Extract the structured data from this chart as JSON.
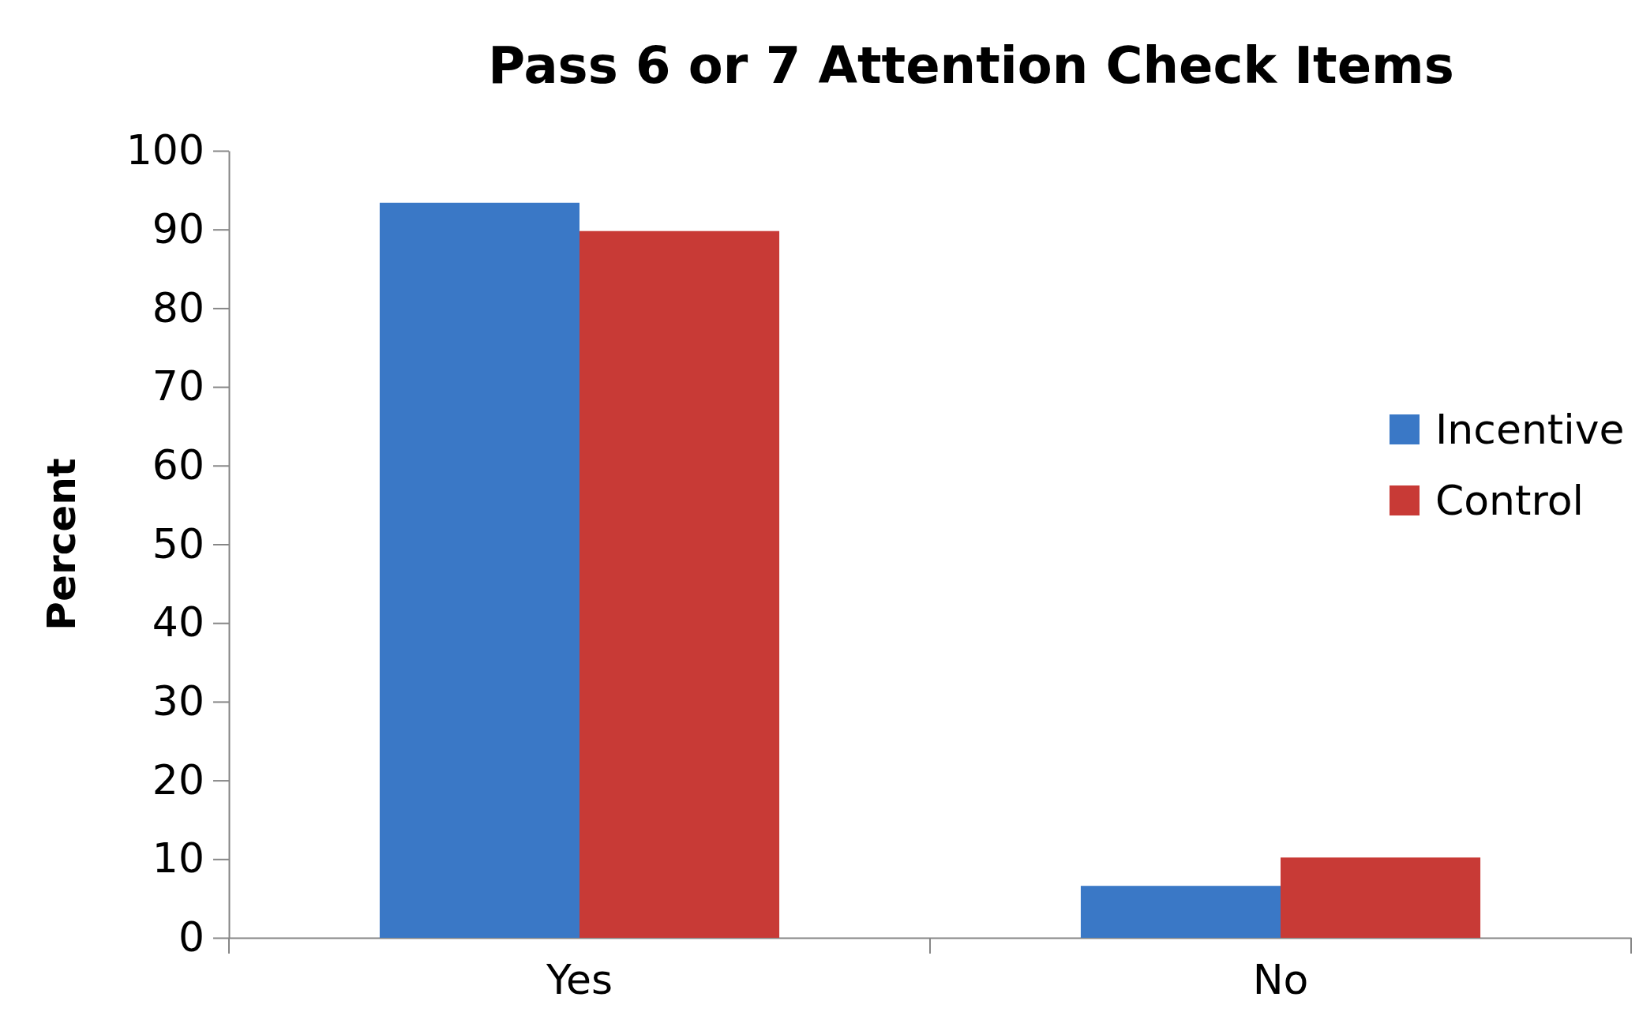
{
  "chart_data": {
    "type": "bar",
    "title": "Pass 6 or 7 Attention Check Items",
    "ylabel": "Percent",
    "categories": [
      "Yes",
      "No"
    ],
    "series": [
      {
        "name": "Incentive",
        "color": "#3a78c6",
        "values": [
          93.4,
          6.6
        ]
      },
      {
        "name": "Control",
        "color": "#c83a36",
        "values": [
          89.8,
          10.2
        ]
      }
    ],
    "ylim": [
      0,
      100
    ],
    "yticks": [
      0,
      10,
      20,
      30,
      40,
      50,
      60,
      70,
      80,
      90,
      100
    ],
    "legend": "right"
  }
}
